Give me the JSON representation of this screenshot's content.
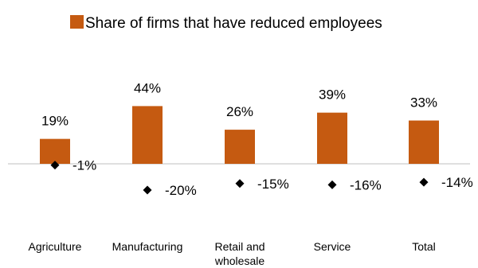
{
  "chart_data": {
    "type": "bar",
    "legend": {
      "label": "Share of firms that have reduced employees",
      "position": "top"
    },
    "categories": [
      "Agriculture",
      "Manufacturing",
      "Retail and wholesale",
      "Service",
      "Total"
    ],
    "category_display": [
      [
        "Agriculture"
      ],
      [
        "Manufacturing"
      ],
      [
        "Retail and",
        "wholesale"
      ],
      [
        "Service"
      ],
      [
        "Total"
      ]
    ],
    "series": [
      {
        "name": "Share of firms that have reduced employees",
        "kind": "bar",
        "color": "#C55A11",
        "values": [
          19,
          44,
          26,
          39,
          33
        ],
        "labels": [
          "19%",
          "44%",
          "26%",
          "39%",
          "33%"
        ]
      },
      {
        "kind": "marker",
        "marker": "diamond",
        "color": "#000000",
        "values": [
          -1,
          -20,
          -15,
          -16,
          -14
        ],
        "labels": [
          "-1%",
          "-20%",
          "-15%",
          "-16%",
          "-14%"
        ]
      }
    ],
    "ylim": [
      -25,
      55
    ],
    "grid": false
  }
}
